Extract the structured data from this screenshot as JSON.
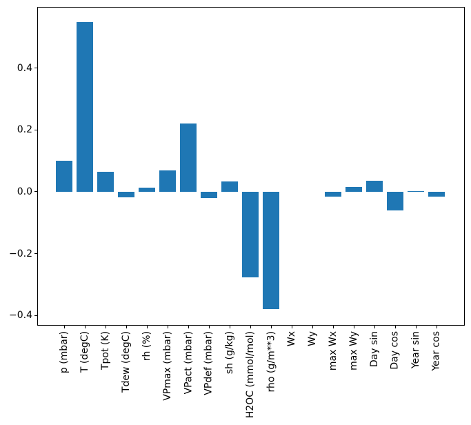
{
  "figure": {
    "background": "#ffffff",
    "bar_color": "#1f77b4",
    "axis_color": "#000000",
    "text_color": "#000000"
  },
  "chart_data": {
    "type": "bar",
    "title": "",
    "xlabel": "",
    "ylabel": "",
    "categories": [
      "p (mbar)",
      "T (degC)",
      "Tpot (K)",
      "Tdew (degC)",
      "rh (%)",
      "VPmax (mbar)",
      "VPact (mbar)",
      "VPdef (mbar)",
      "sh (g/kg)",
      "H2OC (mmol/mol)",
      "rho (g/m**3)",
      "Wx",
      "Wy",
      "max Wx",
      "max Wy",
      "Day sin",
      "Day cos",
      "Year sin",
      "Year cos"
    ],
    "values": [
      0.1,
      0.548,
      0.064,
      -0.018,
      0.013,
      0.068,
      0.222,
      -0.02,
      0.034,
      -0.276,
      -0.38,
      0.0,
      0.0,
      -0.016,
      0.015,
      0.035,
      -0.06,
      0.002,
      -0.016
    ],
    "yticks": [
      {
        "value": 0.4,
        "label": "0.4"
      },
      {
        "value": 0.2,
        "label": "0.2"
      },
      {
        "value": 0.0,
        "label": "0.0"
      },
      {
        "value": -0.2,
        "label": "−0.2"
      },
      {
        "value": -0.4,
        "label": "−0.4"
      }
    ],
    "ylim": [
      -0.431,
      0.596
    ],
    "grid": false,
    "legend_position": "none",
    "bar_orientation": "vertical",
    "xtick_label_rotation_deg": 90
  }
}
